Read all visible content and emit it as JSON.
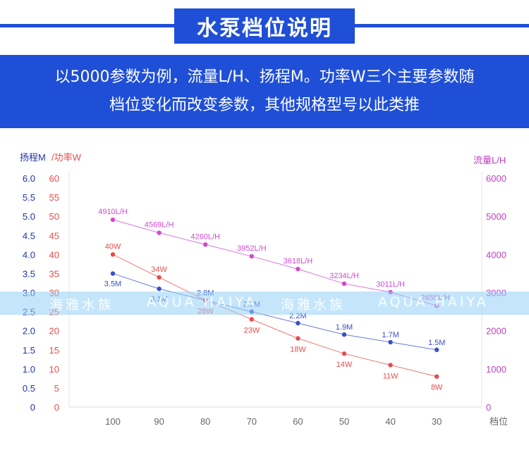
{
  "header": {
    "title": "水泵档位说明",
    "line1": "以5000参数为例，流量L/H、扬程M。功率W三个主要参数随",
    "line2": "档位变化而改变参数，其他规格型号以此类推"
  },
  "watermark": {
    "texts": [
      "海雅水族",
      "AQUA HAIYA",
      "海雅水族",
      "AQUA HAIYA"
    ]
  },
  "colors": {
    "head": "#3a4fc4",
    "power": "#e84c4c",
    "flow": "#d04ad0",
    "left_axis": "#2233aa",
    "right_axis": "#c040c0",
    "banner": "#1f4fd6"
  },
  "chart_data": {
    "type": "line",
    "categories": [
      "100",
      "90",
      "80",
      "70",
      "60",
      "50",
      "40",
      "30"
    ],
    "xlabel": "档位",
    "ylabel_head": "扬程M",
    "ylabel_power": "/功率W",
    "ylabel_right": "流量L/H",
    "yticks_head": [
      "0",
      "0.5",
      "1.0",
      "1.5",
      "2.0",
      "2.5",
      "3.0",
      "3.5",
      "4.0",
      "4.5",
      "5.0",
      "5.5",
      "6.0"
    ],
    "yticks_power": [
      "0",
      "5",
      "10",
      "15",
      "20",
      "25",
      "30",
      "35",
      "40",
      "45",
      "50",
      "55",
      "60"
    ],
    "yticks_right": [
      "0",
      "1000",
      "2000",
      "3000",
      "4000",
      "5000",
      "6000"
    ],
    "ylim_head": [
      0,
      6
    ],
    "ylim_power": [
      0,
      60
    ],
    "ylim_right": [
      0,
      6000
    ],
    "series": [
      {
        "name": "扬程M",
        "axis": "head",
        "values": [
          3.5,
          3.1,
          2.8,
          2.5,
          2.2,
          1.9,
          1.7,
          1.5
        ],
        "labels": [
          "3.5M",
          "3.1M",
          "2.8M",
          "2.5M",
          "2.2M",
          "1.9M",
          "1.7M",
          "1.5M"
        ]
      },
      {
        "name": "功率W",
        "axis": "power",
        "values": [
          40,
          34,
          28,
          23,
          18,
          14,
          11,
          8
        ],
        "labels": [
          "40W",
          "34W",
          "28W",
          "23W",
          "18W",
          "14W",
          "11W",
          "8W"
        ]
      },
      {
        "name": "流量L/H",
        "axis": "right",
        "values": [
          4910,
          4569,
          4260,
          3952,
          3618,
          3234,
          3011,
          2655
        ],
        "labels": [
          "4910L/H",
          "4569L/H",
          "4260L/H",
          "3952L/H",
          "3618L/H",
          "3234L/H",
          "3011L/H",
          "2655L/H"
        ]
      }
    ]
  }
}
